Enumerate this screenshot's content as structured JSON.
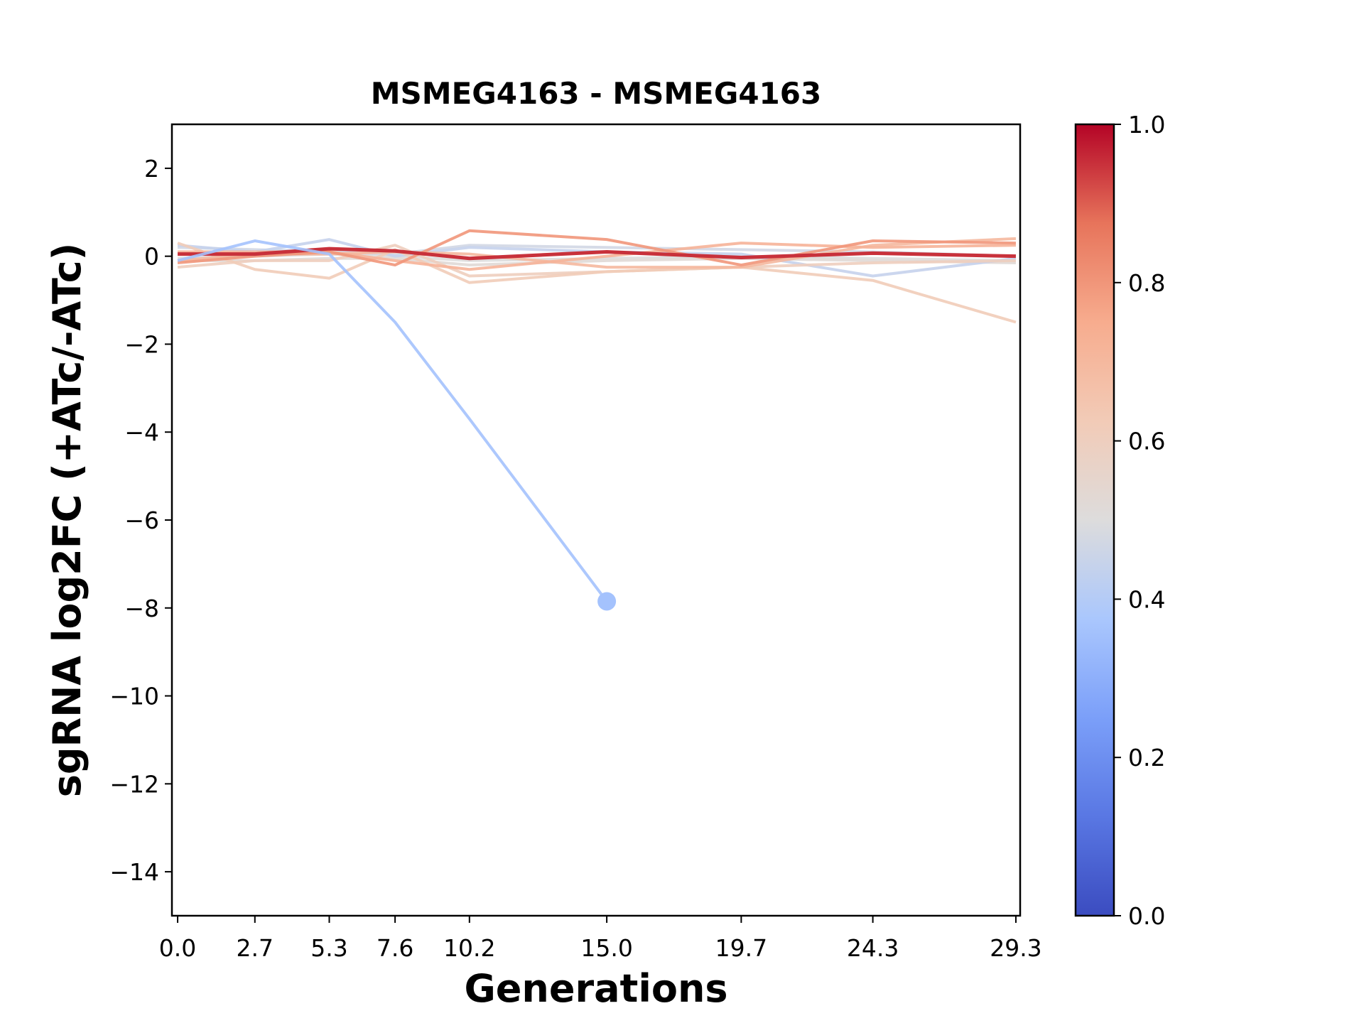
{
  "chart_data": {
    "type": "line",
    "title": "MSMEG4163 - MSMEG4163",
    "xlabel": "Generations",
    "ylabel": "sgRNA log2FC (+ATc/-ATc)",
    "x": [
      0.0,
      2.7,
      5.3,
      7.6,
      10.2,
      15.0,
      19.7,
      24.3,
      29.3
    ],
    "xtick_labels": [
      "0.0",
      "2.7",
      "5.3",
      "7.6",
      "10.2",
      "15.0",
      "19.7",
      "24.3",
      "29.3"
    ],
    "xlim": [
      -0.2,
      29.45
    ],
    "ylim": [
      -15,
      3
    ],
    "yticks": [
      2,
      0,
      -2,
      -4,
      -6,
      -8,
      -10,
      -12,
      -14
    ],
    "ytick_labels": [
      "2",
      "0",
      "−2",
      "−4",
      "−6",
      "−8",
      "−10",
      "−12",
      "−14"
    ],
    "grid": false,
    "colormap": "coolwarm",
    "colorbar": {
      "range": [
        0.0,
        1.0
      ],
      "ticks": [
        0.0,
        0.2,
        0.4,
        0.6,
        0.8,
        1.0
      ],
      "tick_labels": [
        "0.0",
        "0.2",
        "0.4",
        "0.6",
        "0.8",
        "1.0"
      ],
      "stops": [
        "#3b4cc0",
        "#5977e3",
        "#7b9ff9",
        "#aac7fd",
        "#dddcdc",
        "#f2cbb7",
        "#f7ac8e",
        "#e7745b",
        "#b40426"
      ]
    },
    "series": [
      {
        "color_value": 0.5,
        "values": [
          -0.05,
          0.0,
          0.05,
          0.0,
          -0.1,
          -0.05,
          0.0,
          -0.05,
          -0.1
        ]
      },
      {
        "color_value": 0.47,
        "values": [
          0.2,
          0.15,
          0.1,
          0.05,
          0.25,
          0.2,
          0.15,
          0.1,
          0.0
        ]
      },
      {
        "color_value": 0.52,
        "values": [
          -0.1,
          -0.1,
          -0.05,
          -0.05,
          -0.2,
          -0.1,
          -0.05,
          -0.1,
          -0.15
        ]
      },
      {
        "color_value": 0.44,
        "values": [
          0.25,
          0.1,
          0.38,
          0.0,
          0.2,
          0.1,
          0.05,
          -0.45,
          -0.05
        ]
      },
      {
        "color_value": 0.6,
        "values": [
          -0.25,
          -0.1,
          -0.1,
          0.25,
          -0.45,
          -0.35,
          -0.25,
          -0.15,
          -0.1
        ]
      },
      {
        "color_value": 0.62,
        "values": [
          0.3,
          -0.3,
          -0.5,
          0.15,
          -0.6,
          -0.35,
          -0.25,
          -0.55,
          -1.5
        ]
      },
      {
        "color_value": 0.7,
        "values": [
          -0.1,
          0.05,
          0.05,
          0.1,
          0.05,
          -0.25,
          -0.25,
          0.25,
          0.4
        ]
      },
      {
        "color_value": 0.72,
        "values": [
          0.1,
          0.1,
          0.1,
          -0.1,
          -0.3,
          0.0,
          0.3,
          0.2,
          0.25
        ]
      },
      {
        "color_value": 0.8,
        "values": [
          -0.15,
          0.0,
          0.1,
          -0.2,
          0.58,
          0.38,
          -0.2,
          0.35,
          0.3
        ]
      },
      {
        "color_value": 0.95,
        "values": [
          0.05,
          0.05,
          0.17,
          0.12,
          -0.05,
          0.1,
          -0.03,
          0.07,
          0.0
        ]
      },
      {
        "color_value": 0.36,
        "values": [
          -0.1,
          0.35,
          0.05,
          -1.5,
          -3.7,
          -7.85,
          null,
          null,
          null
        ],
        "end_marker": true
      }
    ]
  }
}
